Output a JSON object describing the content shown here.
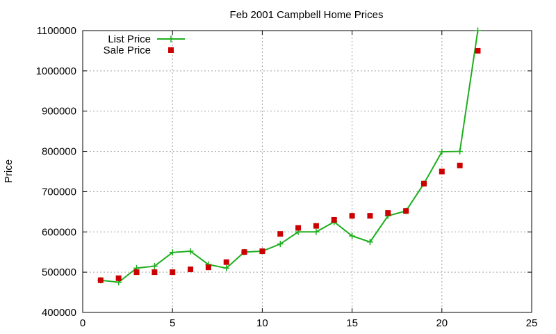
{
  "chart_data": {
    "type": "line",
    "title": "Feb 2001 Campbell Home Prices",
    "xlabel": "",
    "ylabel": "Price",
    "xlim": [
      0,
      25
    ],
    "ylim": [
      400000,
      1100000
    ],
    "xticks": [
      0,
      5,
      10,
      15,
      20,
      25
    ],
    "yticks": [
      400000,
      500000,
      600000,
      700000,
      800000,
      900000,
      1000000,
      1100000
    ],
    "grid": true,
    "legend_position": "top-left",
    "x": [
      1,
      2,
      3,
      4,
      5,
      6,
      7,
      8,
      9,
      10,
      11,
      12,
      13,
      14,
      15,
      16,
      17,
      18,
      19,
      20,
      21,
      22
    ],
    "series": [
      {
        "name": "List Price",
        "style": "lines+crosses",
        "color": "#1eae1e",
        "values": [
          480000,
          475000,
          510000,
          515000,
          549000,
          552000,
          519000,
          510000,
          550000,
          552000,
          570000,
          600000,
          600000,
          625000,
          590000,
          575000,
          640000,
          652000,
          720000,
          799000,
          800000,
          1100000
        ]
      },
      {
        "name": "Sale Price",
        "style": "points-square",
        "color": "#cc0000",
        "values": [
          480000,
          485000,
          500000,
          500000,
          500000,
          507000,
          512000,
          525000,
          550000,
          552000,
          595000,
          610000,
          615000,
          630000,
          640000,
          640000,
          647000,
          652000,
          720000,
          750000,
          765000,
          1050000
        ]
      }
    ]
  }
}
